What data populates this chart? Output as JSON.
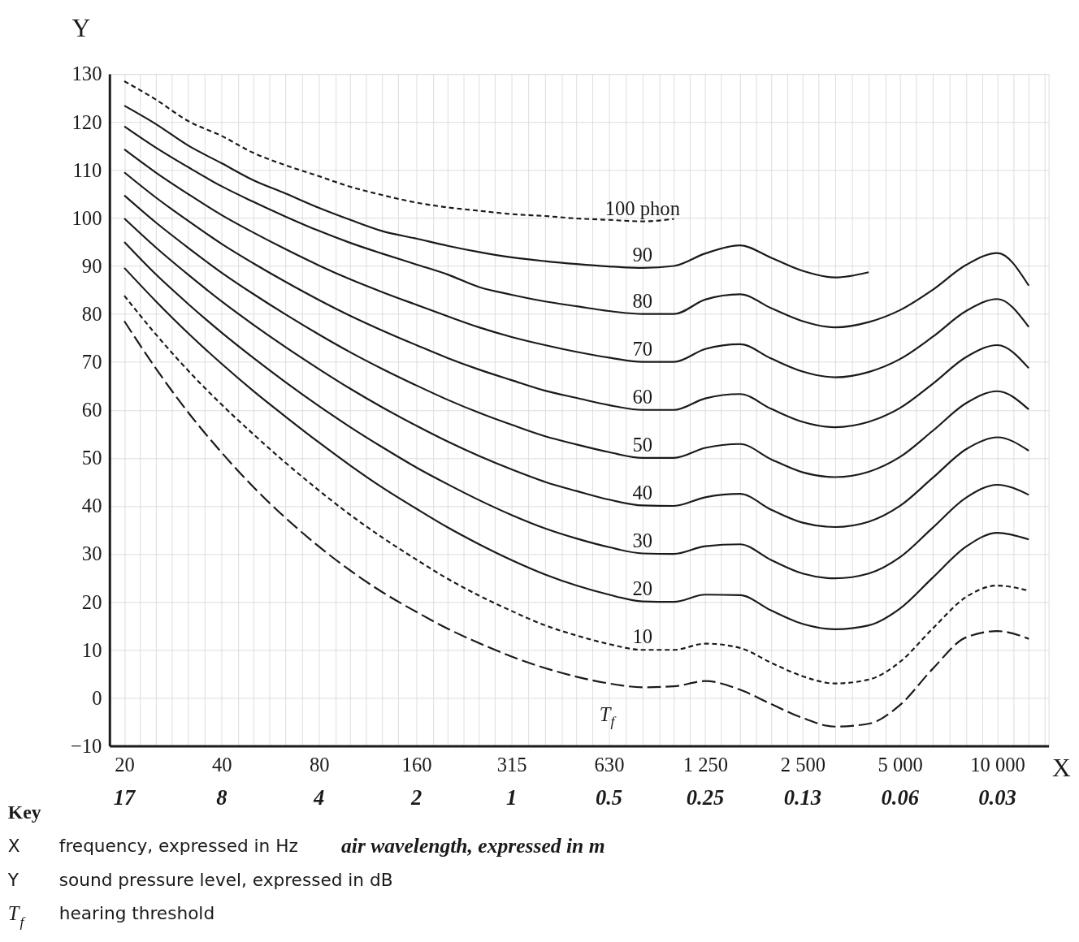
{
  "chart_data": {
    "type": "line",
    "xlabel": "X",
    "ylabel": "Y",
    "log": "x",
    "grid": true,
    "x": [
      20,
      25,
      31.5,
      40,
      50,
      63,
      80,
      100,
      125,
      160,
      200,
      250,
      315,
      400,
      500,
      630,
      800,
      1000,
      1250,
      1600,
      2000,
      2500,
      3150,
      4000,
      5000,
      6300,
      8000,
      10000,
      12500
    ],
    "series": [
      {
        "name": "100 phon",
        "color": "#1a1a1a",
        "line_style": "dotted",
        "values": [
          128.5,
          124.7,
          120.2,
          117.1,
          113.6,
          111.0,
          108.7,
          106.5,
          104.8,
          103.2,
          102.2,
          101.5,
          100.8,
          100.4,
          99.9,
          99.6,
          99.3,
          99.8,
          null,
          null,
          null,
          null,
          null,
          null,
          null,
          null,
          null,
          null,
          null
        ]
      },
      {
        "name": "90",
        "color": "#1a1a1a",
        "line_style": "solid",
        "values": [
          123.4,
          119.6,
          115.1,
          111.4,
          107.9,
          105.1,
          102.1,
          99.6,
          97.3,
          95.7,
          94.2,
          92.9,
          91.8,
          91.0,
          90.4,
          89.9,
          89.6,
          90.0,
          92.6,
          94.3,
          91.7,
          89.0,
          87.6,
          88.7,
          null,
          null,
          null,
          null,
          null
        ]
      },
      {
        "name": "80",
        "color": "#1a1a1a",
        "line_style": "solid",
        "values": [
          119.1,
          114.7,
          110.6,
          106.6,
          103.4,
          100.3,
          97.3,
          94.8,
          92.6,
          90.3,
          88.2,
          85.6,
          84.0,
          82.6,
          81.6,
          80.6,
          80.0,
          80.0,
          83.0,
          84.1,
          81.2,
          78.5,
          77.2,
          78.3,
          80.8,
          85.0,
          90.2,
          92.7,
          85.9
        ]
      },
      {
        "name": "70",
        "color": "#1a1a1a",
        "line_style": "solid",
        "values": [
          114.3,
          109.5,
          105.0,
          100.6,
          97.0,
          93.5,
          90.1,
          87.2,
          84.6,
          81.9,
          79.5,
          77.2,
          75.2,
          73.5,
          72.1,
          70.9,
          70.0,
          70.0,
          72.7,
          73.7,
          70.7,
          68.0,
          66.8,
          67.9,
          70.6,
          75.2,
          80.6,
          83.1,
          77.3
        ]
      },
      {
        "name": "60",
        "color": "#1a1a1a",
        "line_style": "solid",
        "values": [
          109.5,
          104.3,
          99.4,
          94.6,
          90.6,
          86.7,
          82.9,
          79.6,
          76.6,
          73.5,
          70.8,
          68.4,
          66.2,
          64.0,
          62.5,
          61.0,
          60.0,
          60.0,
          62.4,
          63.3,
          60.2,
          57.5,
          56.4,
          57.5,
          60.4,
          65.4,
          71.0,
          73.5,
          68.7
        ]
      },
      {
        "name": "50",
        "color": "#1a1a1a",
        "line_style": "solid",
        "values": [
          104.7,
          99.1,
          93.8,
          88.6,
          84.2,
          79.9,
          75.7,
          72.0,
          68.6,
          65.1,
          62.1,
          59.4,
          56.9,
          54.5,
          52.8,
          51.2,
          50.0,
          50.0,
          52.1,
          52.9,
          49.7,
          47.0,
          46.0,
          47.1,
          50.2,
          55.6,
          61.4,
          63.9,
          60.1
        ]
      },
      {
        "name": "40",
        "color": "#1a1a1a",
        "line_style": "solid",
        "values": [
          99.9,
          93.9,
          88.2,
          82.6,
          77.8,
          73.1,
          68.5,
          64.4,
          60.6,
          56.7,
          53.4,
          50.4,
          47.6,
          45.0,
          43.1,
          41.3,
          40.1,
          40.0,
          41.8,
          42.5,
          39.2,
          36.5,
          35.6,
          36.7,
          40.0,
          45.8,
          51.8,
          54.3,
          51.5
        ]
      },
      {
        "name": "30",
        "color": "#1a1a1a",
        "line_style": "solid",
        "values": [
          95.0,
          88.3,
          82.1,
          76.1,
          70.9,
          65.8,
          60.8,
          56.4,
          52.3,
          48.0,
          44.5,
          41.2,
          38.1,
          35.3,
          33.2,
          31.4,
          30.1,
          30.0,
          31.6,
          32.0,
          28.7,
          25.9,
          24.9,
          25.9,
          29.3,
          35.4,
          41.7,
          44.4,
          42.3
        ]
      },
      {
        "name": "20",
        "color": "#1a1a1a",
        "line_style": "solid",
        "values": [
          89.6,
          82.7,
          76.0,
          69.6,
          64.0,
          58.6,
          53.2,
          48.4,
          43.9,
          39.4,
          35.5,
          32.0,
          28.7,
          25.7,
          23.4,
          21.5,
          20.1,
          20.0,
          21.5,
          21.4,
          18.2,
          15.4,
          14.3,
          15.1,
          18.6,
          25.0,
          31.5,
          34.4,
          33.0
        ]
      },
      {
        "name": "10",
        "color": "#1a1a1a",
        "line_style": "dotted",
        "values": [
          83.8,
          75.8,
          68.2,
          61.1,
          55.0,
          49.0,
          43.2,
          38.1,
          33.5,
          28.8,
          24.8,
          21.3,
          18.1,
          15.1,
          13.0,
          11.2,
          10.0,
          10.0,
          11.3,
          10.4,
          7.3,
          4.5,
          3.0,
          3.8,
          7.5,
          14.4,
          21.0,
          23.4,
          22.3
        ]
      },
      {
        "name": "T$_{f}$",
        "color": "#1a1a1a",
        "line_style": "dashed",
        "values": [
          78.5,
          68.7,
          59.5,
          51.1,
          44.0,
          37.5,
          31.5,
          26.5,
          22.1,
          17.9,
          14.4,
          11.4,
          8.6,
          6.2,
          4.4,
          3.0,
          2.2,
          2.4,
          3.5,
          1.7,
          -1.3,
          -4.2,
          -6.0,
          -5.4,
          -1.5,
          6.0,
          12.6,
          13.9,
          12.3
        ]
      }
    ],
    "xlim": [
      18,
      14400
    ],
    "xticks": [
      20,
      {
        "value": 22.4,
        "label": null
      },
      {
        "value": 25,
        "label": null
      },
      {
        "value": 28,
        "label": null
      },
      {
        "value": 31.5,
        "label": null
      },
      {
        "value": 35.5,
        "label": null
      },
      40,
      {
        "value": 45,
        "label": null
      },
      {
        "value": 50,
        "label": null
      },
      {
        "value": 56,
        "label": null
      },
      {
        "value": 63,
        "label": null
      },
      {
        "value": 71,
        "label": null
      },
      80,
      {
        "value": 90,
        "label": null
      },
      {
        "value": 100,
        "label": null
      },
      {
        "value": 112,
        "label": null
      },
      {
        "value": 125,
        "label": null
      },
      {
        "value": 140,
        "label": null
      },
      160,
      {
        "value": 180,
        "label": null
      },
      {
        "value": 200,
        "label": null
      },
      {
        "value": 224,
        "label": null
      },
      {
        "value": 250,
        "label": null
      },
      {
        "value": 280,
        "label": null
      },
      315,
      {
        "value": 355,
        "label": null
      },
      {
        "value": 400,
        "label": null
      },
      {
        "value": 450,
        "label": null
      },
      {
        "value": 500,
        "label": null
      },
      {
        "value": 560,
        "label": null
      },
      630,
      {
        "value": 710,
        "label": null
      },
      {
        "value": 800,
        "label": null
      },
      {
        "value": 900,
        "label": null
      },
      {
        "value": 1000,
        "label": null
      },
      {
        "value": 1120,
        "label": null
      },
      {
        "value": 1250,
        "label": "1 250"
      },
      {
        "value": 1400,
        "label": null
      },
      {
        "value": 1600,
        "label": null
      },
      {
        "value": 1800,
        "label": null
      },
      {
        "value": 2000,
        "label": null
      },
      {
        "value": 2240,
        "label": null
      },
      {
        "value": 2500,
        "label": "2 500"
      },
      {
        "value": 2800,
        "label": null
      },
      {
        "value": 3150,
        "label": null
      },
      {
        "value": 3550,
        "label": null
      },
      {
        "value": 4000,
        "label": null
      },
      {
        "value": 4500,
        "label": null
      },
      {
        "value": 5000,
        "label": "5 000"
      },
      {
        "value": 5600,
        "label": null
      },
      {
        "value": 6300,
        "label": null
      },
      {
        "value": 7100,
        "label": null
      },
      {
        "value": 8000,
        "label": null
      },
      {
        "value": 9000,
        "label": null
      },
      {
        "value": 10000,
        "label": "10 000"
      },
      {
        "value": 11200,
        "label": null
      },
      {
        "value": 12500,
        "label": null
      },
      {
        "value": 14000,
        "label": null
      }
    ],
    "ylim": [
      -10,
      130
    ],
    "yticks": [
      {
        "value": -10,
        "label": "−10"
      },
      0,
      10,
      20,
      30,
      40,
      50,
      60,
      70,
      80,
      90,
      100,
      110,
      120,
      130
    ],
    "annotations": [
      "17",
      "8",
      "4",
      "2",
      "1",
      "0.5",
      "0.25",
      "0.13",
      "0.06",
      "0.03",
      "Key",
      "X",
      "frequency, expressed in Hz",
      "air wavelength, expressed in m",
      "Y",
      "sound pressure level, expressed in dB",
      "T$_{f}$",
      "hearing threshold"
    ]
  }
}
